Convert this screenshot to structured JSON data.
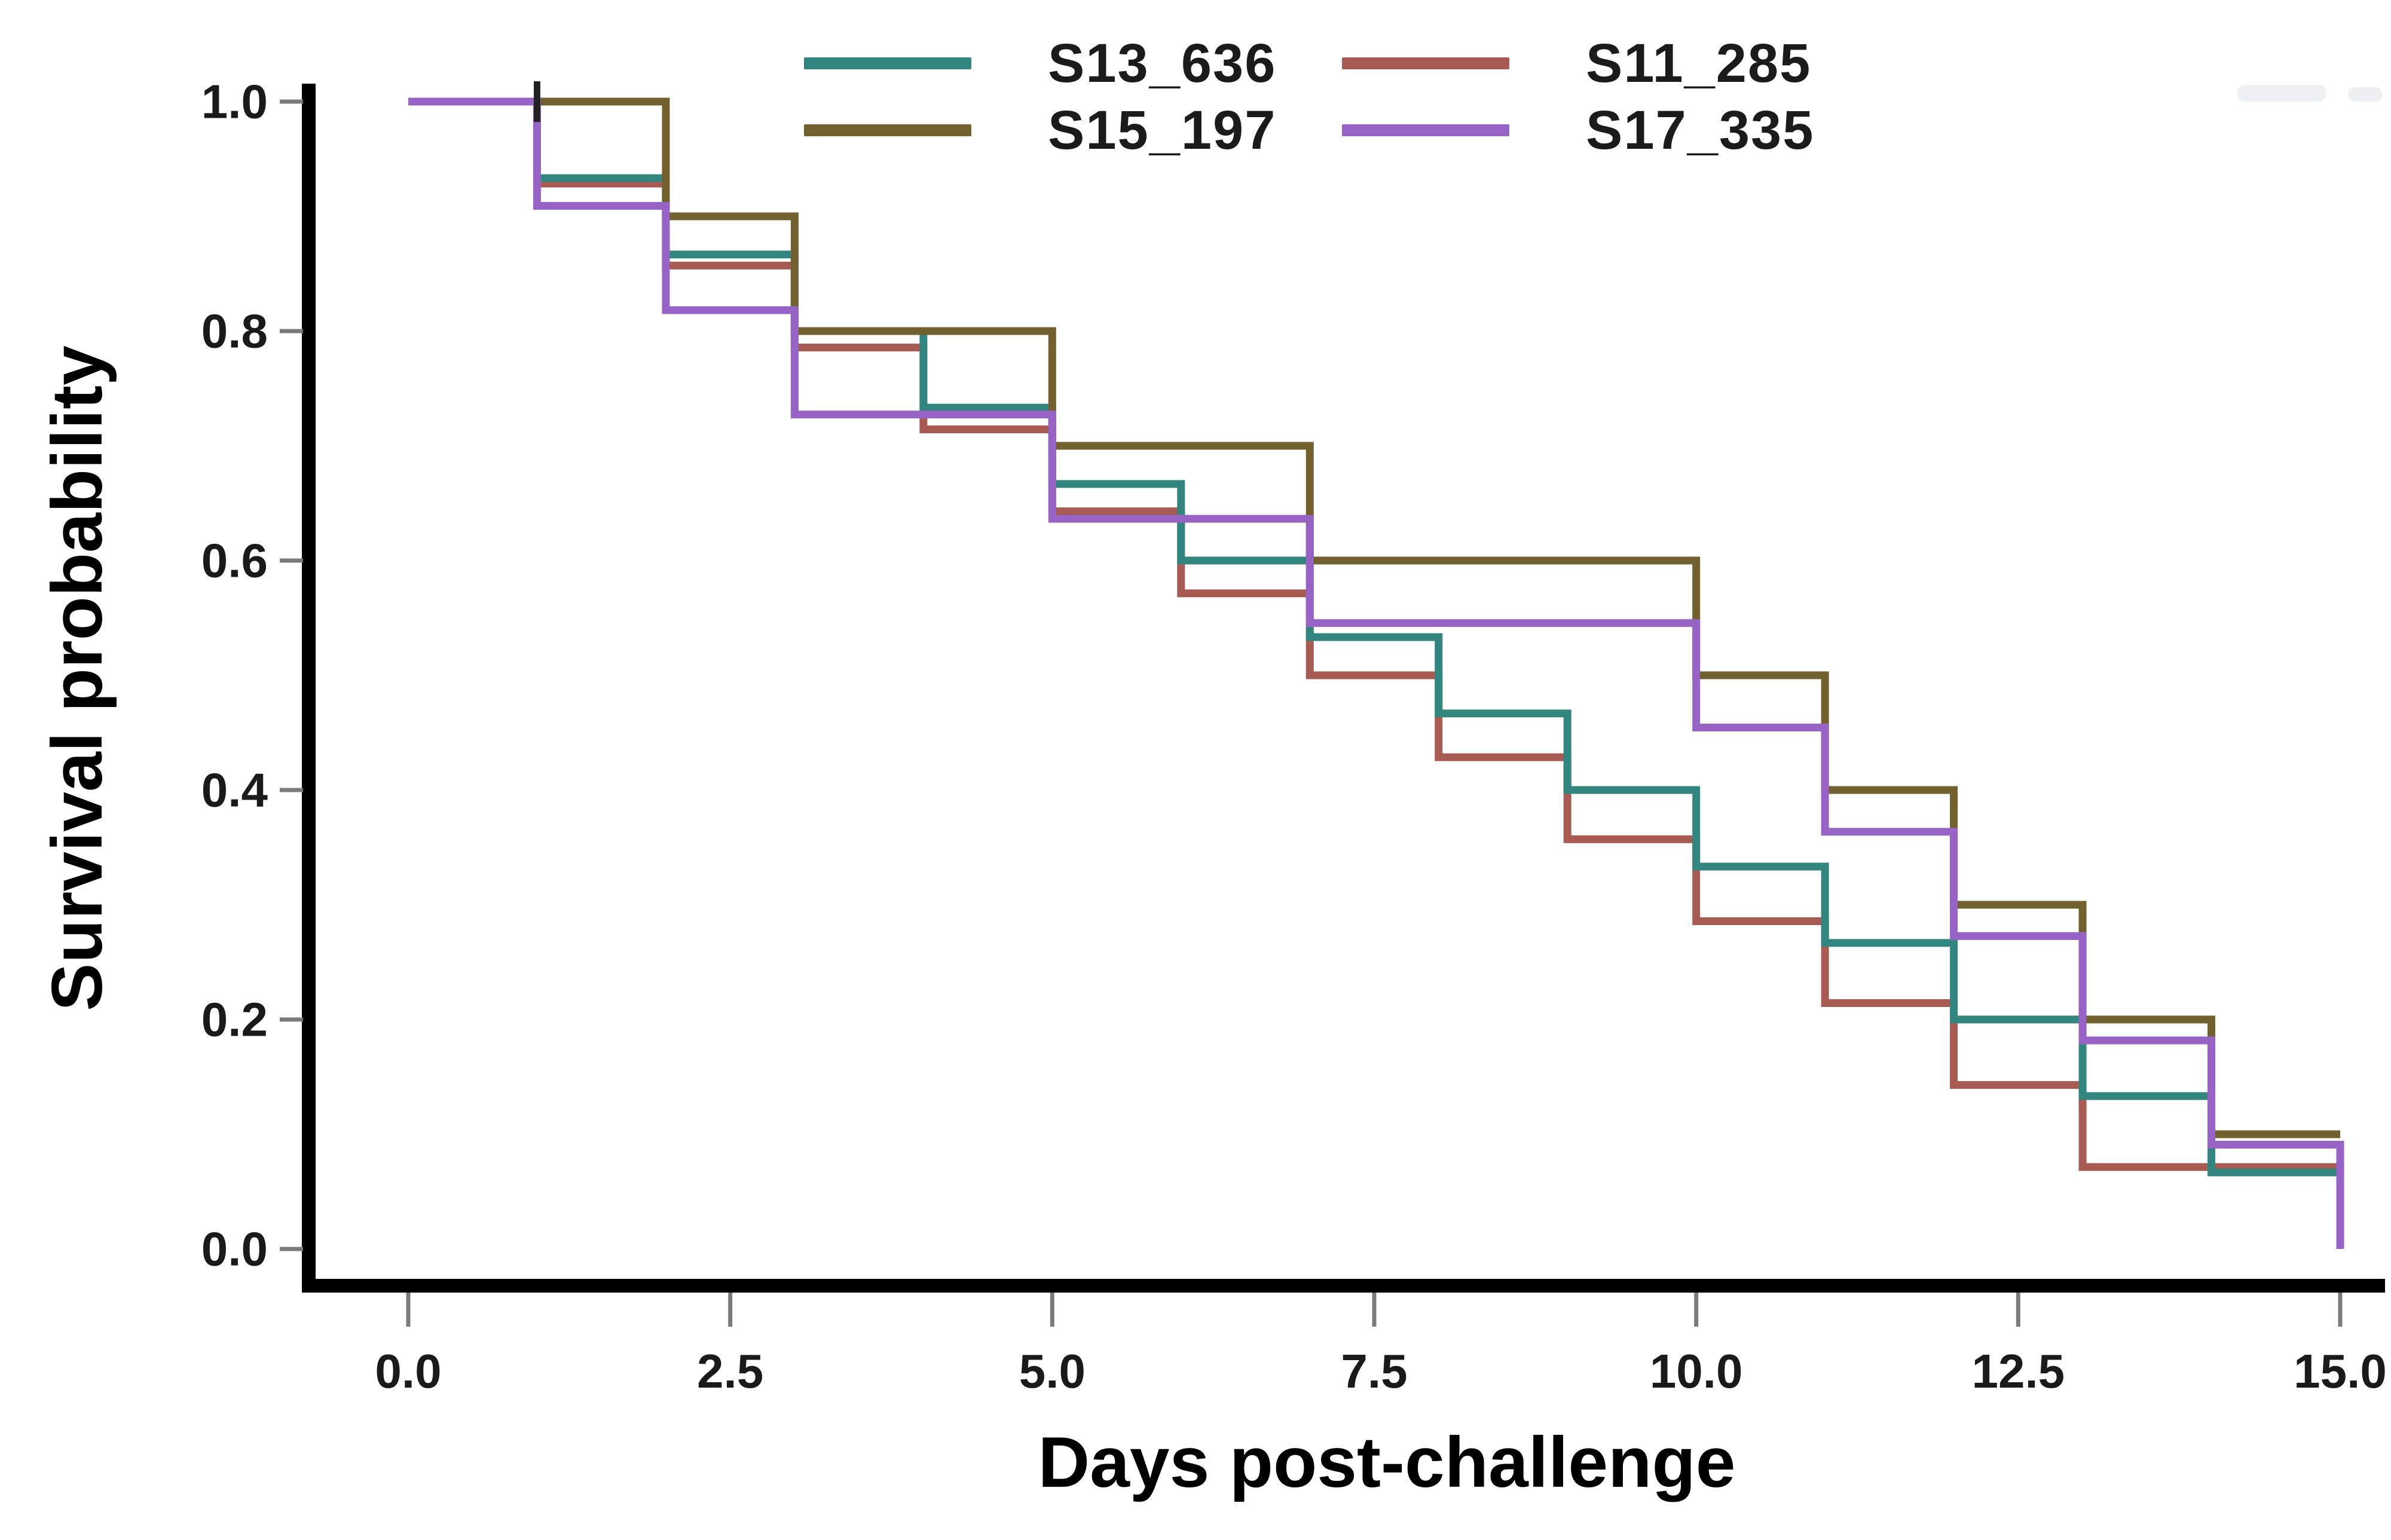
{
  "chart_data": {
    "type": "line",
    "subtype": "kaplan-meier-step",
    "title": "",
    "xlabel": "Days post-challenge",
    "ylabel": "Survival probability",
    "xlim": [
      0,
      15
    ],
    "ylim": [
      0.0,
      1.0
    ],
    "x_ticks": [
      0,
      2.5,
      5,
      7.5,
      10,
      12.5,
      15
    ],
    "x_tick_labels": [
      "0.0",
      "2.5",
      "5.0",
      "7.5",
      "10.0",
      "12.5",
      "15.0"
    ],
    "y_ticks": [
      0.0,
      0.2,
      0.4,
      0.6,
      0.8,
      1.0
    ],
    "y_tick_labels": [
      "0.0",
      "0.2",
      "0.4",
      "0.6",
      "0.8",
      "1.0"
    ],
    "grid": false,
    "legend_position": "top-center-2x2",
    "series": [
      {
        "name": "S13_636",
        "color": "#338680",
        "steps": [
          [
            0,
            1.0
          ],
          [
            1,
            0.9333
          ],
          [
            2,
            0.8667
          ],
          [
            3,
            0.8
          ],
          [
            4,
            0.7333
          ],
          [
            5,
            0.6667
          ],
          [
            6,
            0.6
          ],
          [
            7,
            0.5333
          ],
          [
            8,
            0.4667
          ],
          [
            9,
            0.4
          ],
          [
            10,
            0.3333
          ],
          [
            11,
            0.2667
          ],
          [
            12,
            0.2
          ],
          [
            13,
            0.1333
          ],
          [
            14,
            0.0667
          ],
          [
            15,
            0.0667
          ]
        ]
      },
      {
        "name": "S11_285",
        "color": "#a85b52",
        "steps": [
          [
            0,
            1.0
          ],
          [
            1,
            0.9286
          ],
          [
            2,
            0.8571
          ],
          [
            3,
            0.7857
          ],
          [
            4,
            0.7143
          ],
          [
            5,
            0.6429
          ],
          [
            6,
            0.5714
          ],
          [
            7,
            0.5
          ],
          [
            8,
            0.4286
          ],
          [
            9,
            0.3571
          ],
          [
            10,
            0.2857
          ],
          [
            11,
            0.2143
          ],
          [
            12,
            0.1429
          ],
          [
            13,
            0.0714
          ],
          [
            15,
            0.0714
          ]
        ]
      },
      {
        "name": "S15_197",
        "color": "#73602f",
        "steps": [
          [
            0,
            1.0
          ],
          [
            2,
            0.9
          ],
          [
            3,
            0.8
          ],
          [
            5,
            0.7
          ],
          [
            7,
            0.6
          ],
          [
            10,
            0.5
          ],
          [
            11,
            0.4
          ],
          [
            12,
            0.3
          ],
          [
            13,
            0.2
          ],
          [
            14,
            0.1
          ],
          [
            15,
            0.1
          ]
        ]
      },
      {
        "name": "S17_335",
        "color": "#9763c4",
        "steps": [
          [
            0,
            1.0
          ],
          [
            1,
            0.9091
          ],
          [
            2,
            0.8182
          ],
          [
            3,
            0.7273
          ],
          [
            5,
            0.6364
          ],
          [
            7,
            0.5455
          ],
          [
            10,
            0.4545
          ],
          [
            11,
            0.3636
          ],
          [
            12,
            0.2727
          ],
          [
            13,
            0.1818
          ],
          [
            14,
            0.0909
          ],
          [
            15,
            0.0
          ]
        ]
      }
    ],
    "annotations": {
      "censor_tick_day": 1,
      "censor_tick_value": 1.0
    }
  }
}
